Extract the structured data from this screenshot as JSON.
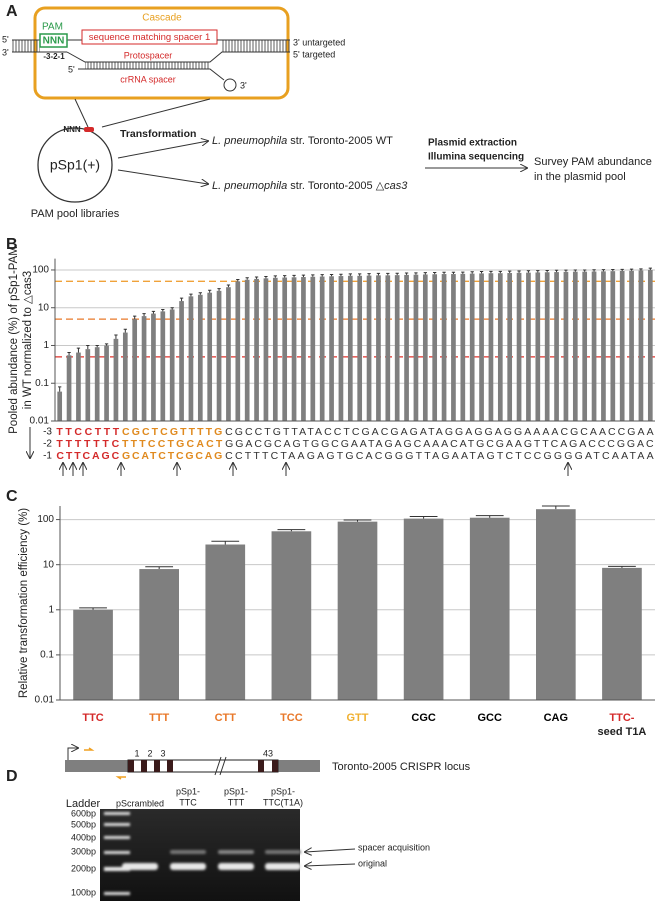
{
  "panel_labels": [
    "A",
    "B",
    "C",
    "D"
  ],
  "diagram_a": {
    "cascade": "Cascade",
    "pam": "PAM",
    "pam_box": "NNN",
    "positions": "-3-2-1",
    "spacer_match": "sequence matching spacer 1",
    "protospacer": "Protospacer",
    "crrna": "crRNA spacer",
    "left_top_end": "5'",
    "left_bottom_end": "3'",
    "crrna_5": "5'",
    "crrna_3": "3'",
    "right_top_end": "3' untargeted",
    "right_bottom_end": "5' targeted",
    "plasmid_pam": "NNN",
    "plasmid": "pSp1(+)",
    "library": "PAM pool libraries",
    "transformation": "Transformation",
    "species": "L. pneumophila",
    "strain_wt": " str. Toronto-2005 WT",
    "strain_mut": " str. Toronto-2005 △",
    "mut_gene": "cas3",
    "step_1": "Plasmid extraction",
    "step_2": "Illumina sequencing",
    "result_1": "Survey PAM abundance",
    "result_2": "in the plasmid pool"
  },
  "chart_data": [
    {
      "type": "bar",
      "log_scale": true,
      "color": "#7f7f7f",
      "error_color": "#333333",
      "grid": true,
      "y_label": [
        "Pooled abundance (%) of pSp1-PAM",
        "in WT normalized to △cas3"
      ],
      "ylim": [
        0.01,
        200
      ],
      "yticks": [
        0.01,
        0.1,
        1,
        10,
        100
      ],
      "values": [
        0.06,
        0.55,
        0.65,
        0.8,
        0.9,
        1.0,
        1.5,
        2.2,
        5,
        6,
        7,
        8,
        9,
        15,
        20,
        22,
        25,
        28,
        35,
        50,
        55,
        58,
        60,
        62,
        63,
        64,
        65,
        66,
        67,
        68,
        69,
        70,
        70,
        71,
        72,
        72,
        73,
        74,
        75,
        76,
        77,
        78,
        78,
        79,
        80,
        81,
        82,
        82,
        83,
        84,
        85,
        86,
        87,
        88,
        89,
        90,
        90,
        91,
        92,
        93,
        94,
        95,
        97,
        100
      ],
      "errors": [
        0.02,
        0.1,
        0.2,
        0.2,
        0.1,
        0.1,
        0.4,
        0.5,
        1,
        1,
        1,
        1,
        1,
        3,
        3,
        3,
        4,
        4,
        5,
        6,
        7,
        7,
        7,
        8,
        8,
        8,
        8,
        8,
        8,
        8,
        8,
        9,
        9,
        9,
        9,
        9,
        9,
        9,
        9,
        9,
        9,
        9,
        9,
        9,
        10,
        10,
        10,
        10,
        10,
        10,
        10,
        10,
        10,
        10,
        10,
        10,
        10,
        10,
        10,
        10,
        10,
        10,
        10,
        12
      ],
      "reference_lines": [
        {
          "value": 50,
          "color": "#f0a23a"
        },
        {
          "value": 5,
          "color": "#e8782a"
        },
        {
          "value": 0.5,
          "color": "#e0302a"
        }
      ],
      "sequence_rows": [
        {
          "label": "-3",
          "segments": [
            {
              "text": "TTCCTTT",
              "color": "#d42a2a"
            },
            {
              "text": "CGCTCGTTTTG",
              "color": "#e08a1f"
            },
            {
              "text": "CGCCTGTTATACCTCGACGAGATAGGAGGAGGAAAACGCAACCGAA",
              "color": "#333333"
            }
          ]
        },
        {
          "label": "-2",
          "segments": [
            {
              "text": "TTTTTTC",
              "color": "#d42a2a"
            },
            {
              "text": "TTTCCTGCACT",
              "color": "#e08a1f"
            },
            {
              "text": "GGACGCAGTGGCGAATAGAGCAAACATGCGAAGTTCAGACCCGGAC",
              "color": "#333333"
            }
          ]
        },
        {
          "label": "-1",
          "segments": [
            {
              "text": "CTTCAGC",
              "color": "#d42a2a"
            },
            {
              "text": "GCATCTCGCAG",
              "color": "#e08a1f"
            },
            {
              "text": "CCTTTCTAAGAGTGCACGGGTTAGAATAGTCTCCGGGGATCAATAA",
              "color": "#333333"
            }
          ]
        }
      ]
    },
    {
      "type": "bar",
      "log_scale": true,
      "color": "#7f7f7f",
      "error_color": "#333333",
      "grid": true,
      "y_label": [
        "Relative transformation efficiency (%)"
      ],
      "ylim": [
        0.01,
        200
      ],
      "yticks": [
        0.01,
        0.1,
        1,
        10,
        100
      ],
      "categories": [
        "TTC",
        "TTT",
        "CTT",
        "TCC",
        "GTT",
        "CGC",
        "GCC",
        "CAG",
        [
          "TTC-",
          "seed T1A"
        ]
      ],
      "category_colors": [
        "#d42a2a",
        "#e8782a",
        "#e8782a",
        "#e8782a",
        "#f0b030",
        "#000000",
        "#000000",
        "#000000",
        "#d42a2a"
      ],
      "values": [
        1,
        8,
        28,
        55,
        90,
        105,
        110,
        170,
        8.5
      ],
      "errors": [
        0.1,
        1,
        5,
        5,
        8,
        12,
        12,
        30,
        0.7
      ]
    }
  ],
  "gel_d": {
    "locus": "Toronto-2005 CRISPR locus",
    "repeats": [
      "1",
      "2",
      "3",
      "43"
    ],
    "ladder": "Ladder",
    "lanes": [
      [
        "pScrambled"
      ],
      [
        "pSp1-",
        "TTC"
      ],
      [
        "pSp1-",
        "TTT"
      ],
      [
        "pSp1-",
        "TTC(T1A)"
      ]
    ],
    "ladder_sizes": [
      "600bp",
      "500bp",
      "400bp",
      "300bp",
      "200bp",
      "100bp"
    ],
    "spacer_acquisition": "spacer acquisition",
    "original": "original"
  }
}
